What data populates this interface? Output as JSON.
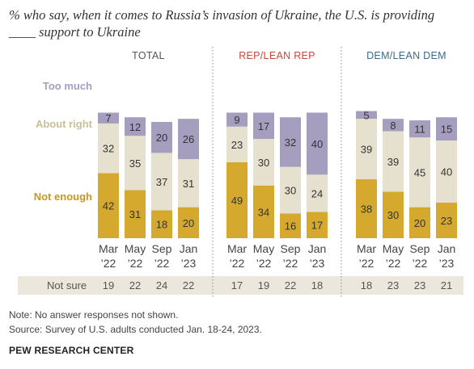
{
  "title": "% who say, when it comes to Russia’s invasion of Ukraine, the U.S. is providing ____ support to Ukraine",
  "colors": {
    "too_much": "#a59ebf",
    "about_right": "#e6e1cf",
    "not_enough": "#d4a92e",
    "panel_total": "#555555",
    "panel_rep": "#c9473c",
    "panel_dem": "#3d6a8c",
    "not_sure_band": "#ebe7dc"
  },
  "footer": {
    "note": "Note: No answer responses not shown.",
    "source": "Source: Survey of U.S. adults conducted Jan. 18-24, 2023.",
    "brand": "PEW RESEARCH CENTER"
  },
  "chart_data": {
    "type": "bar",
    "stacked": true,
    "categories": [
      "Mar '22",
      "May '22",
      "Sep '22",
      "Jan '23"
    ],
    "category_labels": [
      [
        "Mar",
        "’22"
      ],
      [
        "May",
        "’22"
      ],
      [
        "Sep",
        "’22"
      ],
      [
        "Jan",
        "’23"
      ]
    ],
    "series": [
      {
        "name": "Not enough",
        "color": "#d4a92e"
      },
      {
        "name": "About right",
        "color": "#e6e1cf"
      },
      {
        "name": "Too much",
        "color": "#a59ebf"
      }
    ],
    "not_sure_label": "Not sure",
    "panels": [
      {
        "name": "TOTAL",
        "not_enough": [
          42,
          31,
          18,
          20
        ],
        "about_right": [
          32,
          35,
          37,
          31
        ],
        "too_much": [
          7,
          12,
          20,
          26
        ],
        "not_sure": [
          19,
          22,
          24,
          22
        ]
      },
      {
        "name": "REP/LEAN REP",
        "not_enough": [
          49,
          34,
          16,
          17
        ],
        "about_right": [
          23,
          30,
          30,
          24
        ],
        "too_much": [
          9,
          17,
          32,
          40
        ],
        "not_sure": [
          17,
          19,
          22,
          18
        ]
      },
      {
        "name": "DEM/LEAN DEM",
        "not_enough": [
          38,
          30,
          20,
          23
        ],
        "about_right": [
          39,
          39,
          45,
          40
        ],
        "too_much": [
          5,
          8,
          11,
          15
        ],
        "not_sure": [
          18,
          23,
          23,
          21
        ]
      }
    ]
  }
}
